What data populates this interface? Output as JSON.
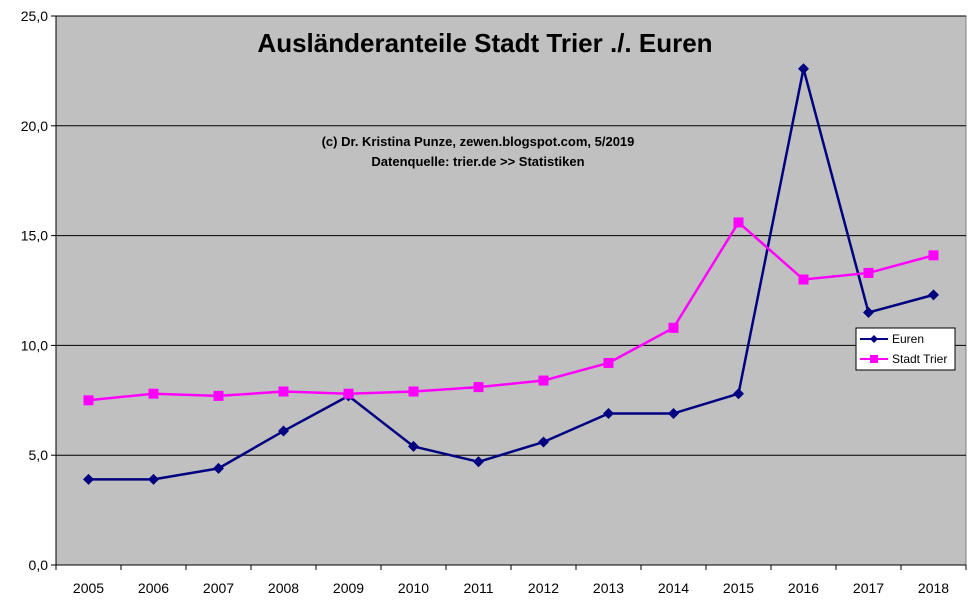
{
  "chart_data": {
    "type": "line",
    "title": "Ausländeranteile Stadt Trier ./. Euren",
    "annotations": [
      "(c) Dr. Kristina Punze, zewen.blogspot.com, 5/2019",
      "Datenquelle: trier.de >> Statistiken"
    ],
    "categories": [
      "2005",
      "2006",
      "2007",
      "2008",
      "2009",
      "2010",
      "2011",
      "2012",
      "2013",
      "2014",
      "2015",
      "2016",
      "2017",
      "2018"
    ],
    "ylim": [
      0,
      25
    ],
    "yticks": [
      0,
      5,
      10,
      15,
      20,
      25
    ],
    "ytick_labels": [
      "0,0",
      "5,0",
      "10,0",
      "15,0",
      "20,0",
      "25,0"
    ],
    "grid": true,
    "legend_position": "right",
    "series": [
      {
        "name": "Euren",
        "marker": "diamond",
        "color": "#000080",
        "values": [
          3.9,
          3.9,
          4.4,
          6.1,
          7.7,
          5.4,
          4.7,
          5.6,
          6.9,
          6.9,
          7.8,
          22.6,
          11.5,
          12.3
        ]
      },
      {
        "name": "Stadt Trier",
        "marker": "square",
        "color": "#ff00ff",
        "values": [
          7.5,
          7.8,
          7.7,
          7.9,
          7.8,
          7.9,
          8.1,
          8.4,
          9.2,
          10.8,
          15.6,
          13.0,
          13.3,
          14.1
        ]
      }
    ]
  },
  "colors": {
    "plot_background": "#c0c0c0",
    "gridline": "#000000"
  }
}
